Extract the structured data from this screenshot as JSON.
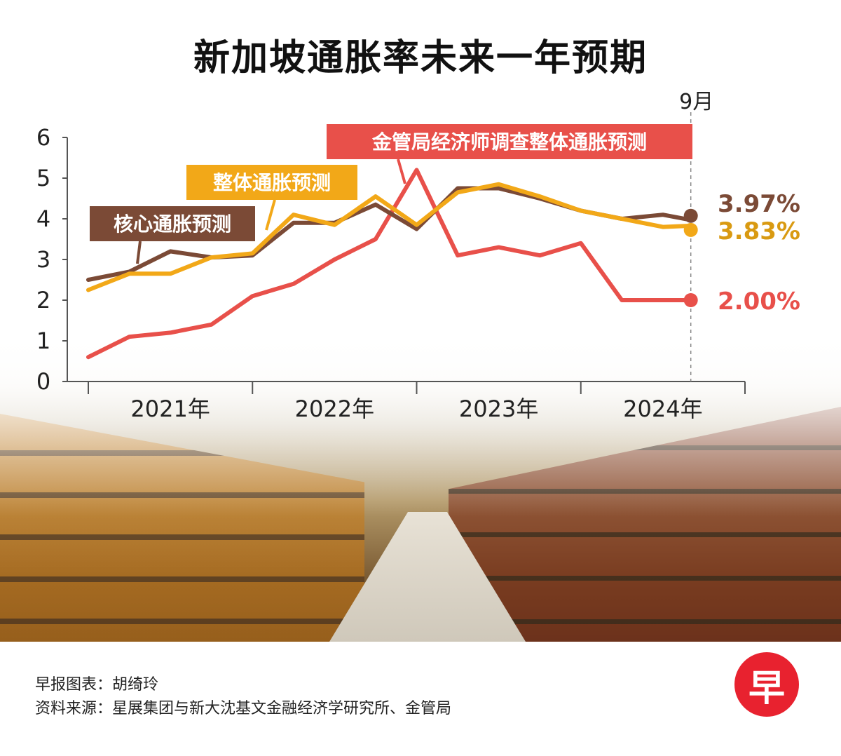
{
  "title": "新加坡通胀率未来一年预期",
  "chart_data": {
    "type": "line",
    "x": [
      2021.0,
      2021.25,
      2021.5,
      2021.75,
      2022.0,
      2022.25,
      2022.5,
      2022.75,
      2023.0,
      2023.25,
      2023.5,
      2023.75,
      2024.0,
      2024.25,
      2024.5,
      2024.67
    ],
    "ylim": [
      0,
      6
    ],
    "yticks": [
      0,
      1,
      2,
      3,
      4,
      5,
      6
    ],
    "xlim": [
      2021.0,
      2025.0
    ],
    "year_boundaries": [
      2021.0,
      2022.0,
      2023.0,
      2024.0,
      2025.0
    ],
    "year_labels": [
      {
        "label": "2021年",
        "x": 2021.5
      },
      {
        "label": "2022年",
        "x": 2022.5
      },
      {
        "label": "2023年",
        "x": 2023.5
      },
      {
        "label": "2024年",
        "x": 2024.5
      }
    ],
    "marker_label": "9月",
    "marker_x": 2024.67,
    "series": [
      {
        "name": "核心通胀预测",
        "color": "#7b4a36",
        "end_label": "3.97%",
        "label_anchor_x": 2021.25,
        "values": [
          2.5,
          2.7,
          3.2,
          3.05,
          3.1,
          3.9,
          3.9,
          4.35,
          3.75,
          4.75,
          4.75,
          4.5,
          4.2,
          4.0,
          4.1,
          3.97
        ]
      },
      {
        "name": "整体通胀预测",
        "color": "#f2a818",
        "end_label": "3.83%",
        "label_anchor_x": 2022.1,
        "values": [
          2.25,
          2.65,
          2.65,
          3.05,
          3.15,
          4.1,
          3.85,
          4.55,
          3.85,
          4.65,
          4.85,
          4.55,
          4.2,
          4.0,
          3.8,
          3.83
        ]
      },
      {
        "name": "金管局经济师调查整体通胀预测",
        "color": "#e8504a",
        "end_label": "2.00%",
        "label_anchor_x": 2023.0,
        "values": [
          0.6,
          1.1,
          1.2,
          1.4,
          2.1,
          2.4,
          3.0,
          3.5,
          5.2,
          3.1,
          3.3,
          3.1,
          3.4,
          2.0,
          2.0,
          2.0
        ]
      }
    ]
  },
  "footer": {
    "credit": "早报图表：胡绮玲",
    "source": "资料来源：星展集团与新大沈基文金融经济学研究所、金管局"
  },
  "logo_text": "早"
}
